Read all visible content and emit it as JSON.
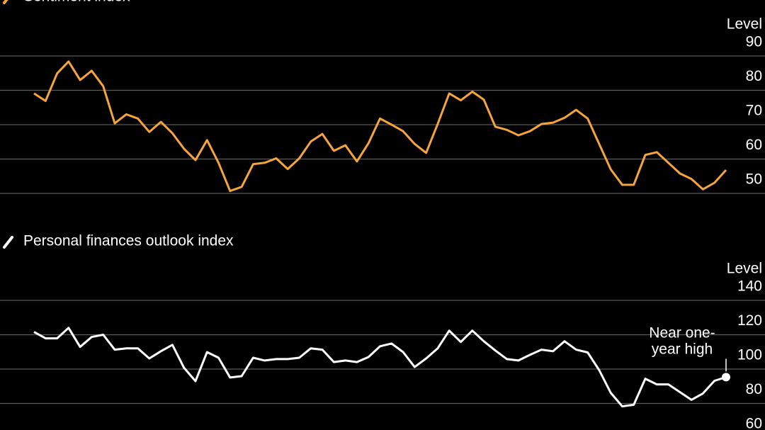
{
  "chart_data": [
    {
      "type": "line",
      "y_label": "Level",
      "series": [
        {
          "name": "Sentiment index",
          "color": "#f6a53c",
          "values": [
            79.1,
            76.9,
            84.9,
            88.4,
            83.0,
            85.7,
            81.2,
            70.4,
            73.0,
            71.8,
            67.9,
            70.8,
            67.5,
            63.0,
            59.7,
            65.5,
            58.9,
            50.7,
            51.9,
            58.5,
            58.9,
            60.2,
            57.1,
            60.2,
            65.1,
            67.3,
            62.4,
            64.0,
            59.3,
            64.6,
            71.8,
            70.0,
            68.1,
            64.4,
            61.8,
            70.2,
            79.1,
            77.1,
            79.6,
            77.3,
            69.4,
            68.5,
            66.9,
            68.1,
            70.2,
            70.6,
            72.0,
            74.3,
            71.8,
            64.4,
            57.0,
            52.5,
            52.5,
            61.2,
            62.0,
            58.9,
            55.8,
            54.2,
            51.2,
            53.1,
            56.8
          ]
        }
      ],
      "ylim": [
        46,
        92
      ],
      "yticks": [
        50,
        60,
        70,
        80,
        90
      ],
      "grid": true
    },
    {
      "type": "line",
      "y_label": "Level",
      "series": [
        {
          "name": "Personal finances outlook index",
          "color": "#ffffff",
          "values": [
            121.6,
            117.9,
            117.9,
            124.0,
            112.9,
            118.7,
            120.0,
            111.3,
            112.1,
            112.1,
            106.2,
            110.4,
            114.1,
            100.8,
            93.0,
            109.9,
            106.6,
            95.1,
            95.9,
            106.6,
            105.0,
            105.8,
            105.8,
            106.6,
            112.1,
            111.3,
            104.1,
            105.0,
            104.1,
            107.0,
            113.3,
            114.9,
            109.9,
            101.2,
            106.2,
            112.1,
            122.4,
            115.8,
            122.4,
            116.2,
            110.8,
            105.8,
            105.0,
            108.3,
            111.3,
            110.4,
            116.2,
            111.3,
            109.7,
            99.4,
            86.2,
            78.3,
            79.2,
            94.4,
            91.1,
            91.1,
            86.6,
            82.1,
            85.8,
            93.2,
            95.3
          ]
        }
      ],
      "ylim": [
        60,
        145
      ],
      "yticks": [
        60,
        80,
        100,
        120,
        140
      ],
      "grid": true,
      "annotation": [
        "Near one-",
        "year high"
      ]
    }
  ]
}
